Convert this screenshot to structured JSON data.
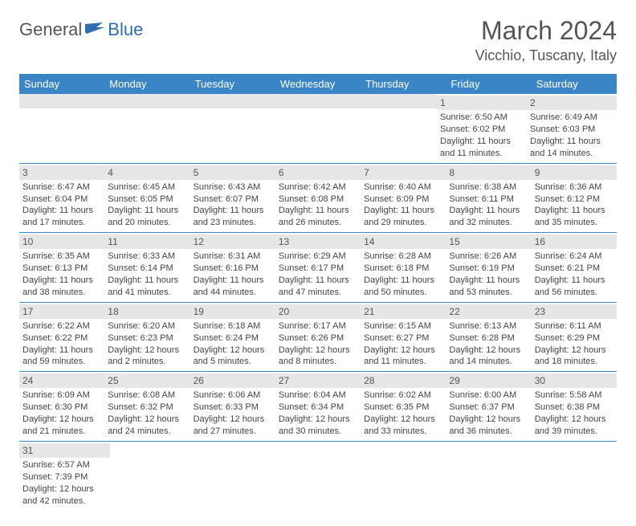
{
  "brand": {
    "part1": "General",
    "part2": "Blue"
  },
  "title": "March 2024",
  "location": "Vicchio, Tuscany, Italy",
  "colors": {
    "header_bg": "#3a85c6",
    "header_text": "#ffffff",
    "daynum_bg": "#e6e6e6",
    "row_border": "#3a85c6",
    "text": "#444444",
    "title_text": "#555555",
    "brand_blue": "#2f6fb0"
  },
  "weekdays": [
    "Sunday",
    "Monday",
    "Tuesday",
    "Wednesday",
    "Thursday",
    "Friday",
    "Saturday"
  ],
  "weeks": [
    [
      null,
      null,
      null,
      null,
      null,
      {
        "n": "1",
        "sr": "Sunrise: 6:50 AM",
        "ss": "Sunset: 6:02 PM",
        "d1": "Daylight: 11 hours",
        "d2": "and 11 minutes."
      },
      {
        "n": "2",
        "sr": "Sunrise: 6:49 AM",
        "ss": "Sunset: 6:03 PM",
        "d1": "Daylight: 11 hours",
        "d2": "and 14 minutes."
      }
    ],
    [
      {
        "n": "3",
        "sr": "Sunrise: 6:47 AM",
        "ss": "Sunset: 6:04 PM",
        "d1": "Daylight: 11 hours",
        "d2": "and 17 minutes."
      },
      {
        "n": "4",
        "sr": "Sunrise: 6:45 AM",
        "ss": "Sunset: 6:05 PM",
        "d1": "Daylight: 11 hours",
        "d2": "and 20 minutes."
      },
      {
        "n": "5",
        "sr": "Sunrise: 6:43 AM",
        "ss": "Sunset: 6:07 PM",
        "d1": "Daylight: 11 hours",
        "d2": "and 23 minutes."
      },
      {
        "n": "6",
        "sr": "Sunrise: 6:42 AM",
        "ss": "Sunset: 6:08 PM",
        "d1": "Daylight: 11 hours",
        "d2": "and 26 minutes."
      },
      {
        "n": "7",
        "sr": "Sunrise: 6:40 AM",
        "ss": "Sunset: 6:09 PM",
        "d1": "Daylight: 11 hours",
        "d2": "and 29 minutes."
      },
      {
        "n": "8",
        "sr": "Sunrise: 6:38 AM",
        "ss": "Sunset: 6:11 PM",
        "d1": "Daylight: 11 hours",
        "d2": "and 32 minutes."
      },
      {
        "n": "9",
        "sr": "Sunrise: 6:36 AM",
        "ss": "Sunset: 6:12 PM",
        "d1": "Daylight: 11 hours",
        "d2": "and 35 minutes."
      }
    ],
    [
      {
        "n": "10",
        "sr": "Sunrise: 6:35 AM",
        "ss": "Sunset: 6:13 PM",
        "d1": "Daylight: 11 hours",
        "d2": "and 38 minutes."
      },
      {
        "n": "11",
        "sr": "Sunrise: 6:33 AM",
        "ss": "Sunset: 6:14 PM",
        "d1": "Daylight: 11 hours",
        "d2": "and 41 minutes."
      },
      {
        "n": "12",
        "sr": "Sunrise: 6:31 AM",
        "ss": "Sunset: 6:16 PM",
        "d1": "Daylight: 11 hours",
        "d2": "and 44 minutes."
      },
      {
        "n": "13",
        "sr": "Sunrise: 6:29 AM",
        "ss": "Sunset: 6:17 PM",
        "d1": "Daylight: 11 hours",
        "d2": "and 47 minutes."
      },
      {
        "n": "14",
        "sr": "Sunrise: 6:28 AM",
        "ss": "Sunset: 6:18 PM",
        "d1": "Daylight: 11 hours",
        "d2": "and 50 minutes."
      },
      {
        "n": "15",
        "sr": "Sunrise: 6:26 AM",
        "ss": "Sunset: 6:19 PM",
        "d1": "Daylight: 11 hours",
        "d2": "and 53 minutes."
      },
      {
        "n": "16",
        "sr": "Sunrise: 6:24 AM",
        "ss": "Sunset: 6:21 PM",
        "d1": "Daylight: 11 hours",
        "d2": "and 56 minutes."
      }
    ],
    [
      {
        "n": "17",
        "sr": "Sunrise: 6:22 AM",
        "ss": "Sunset: 6:22 PM",
        "d1": "Daylight: 11 hours",
        "d2": "and 59 minutes."
      },
      {
        "n": "18",
        "sr": "Sunrise: 6:20 AM",
        "ss": "Sunset: 6:23 PM",
        "d1": "Daylight: 12 hours",
        "d2": "and 2 minutes."
      },
      {
        "n": "19",
        "sr": "Sunrise: 6:18 AM",
        "ss": "Sunset: 6:24 PM",
        "d1": "Daylight: 12 hours",
        "d2": "and 5 minutes."
      },
      {
        "n": "20",
        "sr": "Sunrise: 6:17 AM",
        "ss": "Sunset: 6:26 PM",
        "d1": "Daylight: 12 hours",
        "d2": "and 8 minutes."
      },
      {
        "n": "21",
        "sr": "Sunrise: 6:15 AM",
        "ss": "Sunset: 6:27 PM",
        "d1": "Daylight: 12 hours",
        "d2": "and 11 minutes."
      },
      {
        "n": "22",
        "sr": "Sunrise: 6:13 AM",
        "ss": "Sunset: 6:28 PM",
        "d1": "Daylight: 12 hours",
        "d2": "and 14 minutes."
      },
      {
        "n": "23",
        "sr": "Sunrise: 6:11 AM",
        "ss": "Sunset: 6:29 PM",
        "d1": "Daylight: 12 hours",
        "d2": "and 18 minutes."
      }
    ],
    [
      {
        "n": "24",
        "sr": "Sunrise: 6:09 AM",
        "ss": "Sunset: 6:30 PM",
        "d1": "Daylight: 12 hours",
        "d2": "and 21 minutes."
      },
      {
        "n": "25",
        "sr": "Sunrise: 6:08 AM",
        "ss": "Sunset: 6:32 PM",
        "d1": "Daylight: 12 hours",
        "d2": "and 24 minutes."
      },
      {
        "n": "26",
        "sr": "Sunrise: 6:06 AM",
        "ss": "Sunset: 6:33 PM",
        "d1": "Daylight: 12 hours",
        "d2": "and 27 minutes."
      },
      {
        "n": "27",
        "sr": "Sunrise: 6:04 AM",
        "ss": "Sunset: 6:34 PM",
        "d1": "Daylight: 12 hours",
        "d2": "and 30 minutes."
      },
      {
        "n": "28",
        "sr": "Sunrise: 6:02 AM",
        "ss": "Sunset: 6:35 PM",
        "d1": "Daylight: 12 hours",
        "d2": "and 33 minutes."
      },
      {
        "n": "29",
        "sr": "Sunrise: 6:00 AM",
        "ss": "Sunset: 6:37 PM",
        "d1": "Daylight: 12 hours",
        "d2": "and 36 minutes."
      },
      {
        "n": "30",
        "sr": "Sunrise: 5:58 AM",
        "ss": "Sunset: 6:38 PM",
        "d1": "Daylight: 12 hours",
        "d2": "and 39 minutes."
      }
    ],
    [
      {
        "n": "31",
        "sr": "Sunrise: 6:57 AM",
        "ss": "Sunset: 7:39 PM",
        "d1": "Daylight: 12 hours",
        "d2": "and 42 minutes."
      },
      null,
      null,
      null,
      null,
      null,
      null
    ]
  ]
}
